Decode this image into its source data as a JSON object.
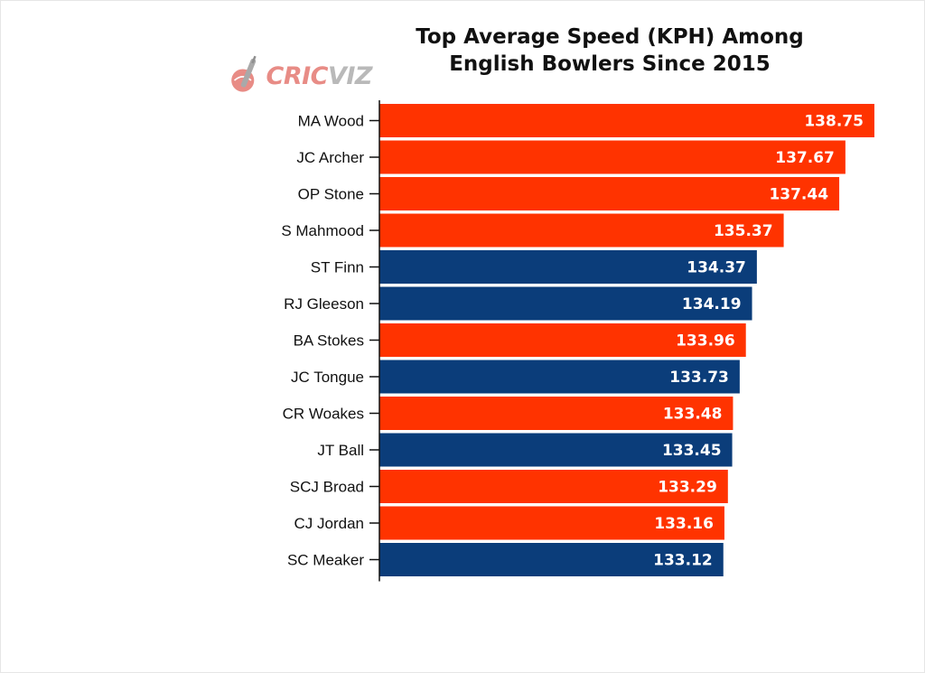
{
  "chart_data": {
    "type": "bar",
    "orientation": "horizontal",
    "title": [
      "Top Average Speed (KPH) Among",
      "English Bowlers Since 2015"
    ],
    "categories": [
      "MA Wood",
      "JC Archer",
      "OP Stone",
      "S Mahmood",
      "ST Finn",
      "RJ Gleeson",
      "BA Stokes",
      "JC Tongue",
      "CR Woakes",
      "JT Ball",
      "SCJ Broad",
      "CJ Jordan",
      "SC Meaker"
    ],
    "values": [
      138.75,
      137.67,
      137.44,
      135.37,
      134.37,
      134.19,
      133.96,
      133.73,
      133.48,
      133.45,
      133.29,
      133.16,
      133.12
    ],
    "value_labels": [
      "138.75",
      "137.67",
      "137.44",
      "135.37",
      "134.37",
      "134.19",
      "133.96",
      "133.73",
      "133.48",
      "133.45",
      "133.29",
      "133.16",
      "133.12"
    ],
    "bar_colors": [
      "#ff3300",
      "#ff3300",
      "#ff3300",
      "#ff3300",
      "#0b3d7a",
      "#0b3d7a",
      "#ff3300",
      "#0b3d7a",
      "#ff3300",
      "#0b3d7a",
      "#ff3300",
      "#ff3300",
      "#0b3d7a"
    ],
    "xlim": [
      120.3,
      139.8
    ],
    "x_axis_visible": false,
    "grid": false,
    "legend": "none",
    "xlabel": "",
    "ylabel": ""
  },
  "logo": {
    "text_part1": "CRIC",
    "text_part2": "VIZ",
    "icon": "cricket-bat-ball-icon"
  },
  "colors": {
    "orange": "#ff3300",
    "navy": "#0b3d7a",
    "logo_red": "#e88c86",
    "logo_grey": "#b9b9b9"
  }
}
